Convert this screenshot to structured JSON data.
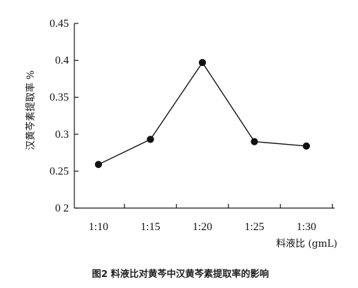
{
  "chart_data": {
    "type": "line",
    "title": "",
    "xlabel": "料液比 (gmL)",
    "ylabel": "汉黄芩素提取率 %",
    "categories": [
      "1:10",
      "1:15",
      "1:20",
      "1:25",
      "1:30"
    ],
    "series": [
      {
        "values": [
          0.259,
          0.293,
          0.397,
          0.29,
          0.284
        ]
      }
    ],
    "ylim": [
      0.2,
      0.45
    ],
    "yticks": [
      0.45,
      0.4,
      0.35,
      0.3,
      0.25,
      0.2
    ],
    "ytick_labels": [
      "0.45",
      "0.4",
      "0.35",
      "0.3",
      "0.25",
      "0 2"
    ],
    "grid": false,
    "legend": "none",
    "colors": {
      "line": "#111111",
      "marker": "#111111",
      "axis": "#111111"
    }
  },
  "caption": "图2  料液比对黄芩中汉黄芩素提取率的影响"
}
